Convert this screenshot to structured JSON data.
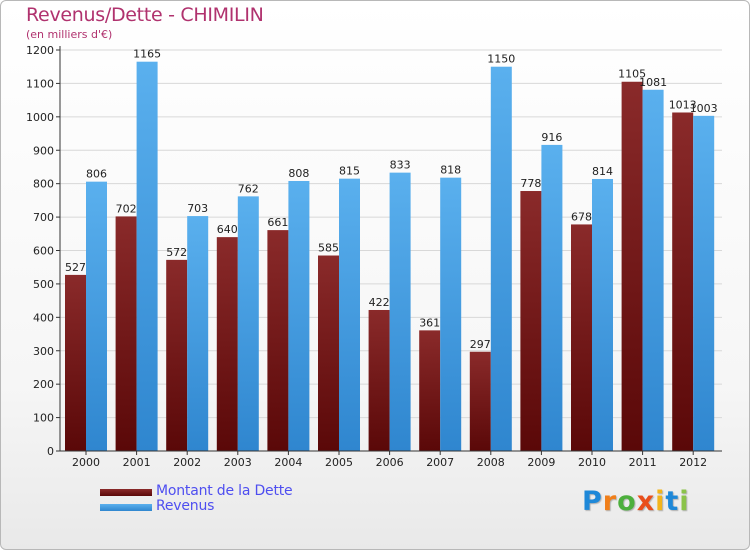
{
  "header": {
    "title": "Revenus/Dette - CHIMILIN",
    "subtitle": "(en milliers d'€)"
  },
  "colors": {
    "dette": "#7a1a1a",
    "revenus": "#4aa0e0",
    "grid": "#d8d8d8",
    "title": "#b0326e"
  },
  "legend": {
    "dette_label": "Montant de la Dette",
    "revenus_label": "Revenus"
  },
  "logo": {
    "letters": [
      "P",
      "r",
      "o",
      "x",
      "i",
      "t",
      "i"
    ],
    "colors": [
      "#1e88d8",
      "#f07f1a",
      "#4caf3c",
      "#e94e1b",
      "#f3b41b",
      "#1e88d8",
      "#8bc34a"
    ]
  },
  "chart_data": {
    "type": "bar",
    "categories": [
      "2000",
      "2001",
      "2002",
      "2003",
      "2004",
      "2005",
      "2006",
      "2007",
      "2008",
      "2009",
      "2010",
      "2011",
      "2012"
    ],
    "series": [
      {
        "name": "Montant de la Dette",
        "values": [
          527,
          702,
          572,
          640,
          661,
          585,
          422,
          361,
          297,
          778,
          678,
          1105,
          1013
        ]
      },
      {
        "name": "Revenus",
        "values": [
          806,
          1165,
          703,
          762,
          808,
          815,
          833,
          818,
          1150,
          916,
          814,
          1081,
          1003
        ]
      }
    ],
    "ylim": [
      0,
      1200
    ],
    "yticks": [
      0,
      100,
      200,
      300,
      400,
      500,
      600,
      700,
      800,
      900,
      1000,
      1100,
      1200
    ],
    "grid": true,
    "legend_position": "bottom-left"
  }
}
